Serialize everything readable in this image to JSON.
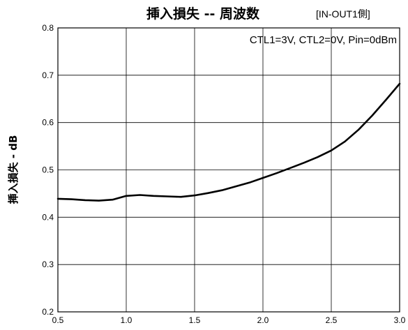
{
  "chart_data": {
    "type": "line",
    "title": "挿入損失 -- 周波数",
    "subtitle": "[IN-OUT1側]",
    "annotation": "CTL1=3V, CTL2=0V, Pin=0dBm",
    "xlabel": "",
    "ylabel": "挿入損失 - dB",
    "xlim": [
      0.5,
      3.0
    ],
    "ylim": [
      0.2,
      0.8
    ],
    "x_ticks": [
      "0.5",
      "1.0",
      "1.5",
      "2.0",
      "2.5",
      "3.0"
    ],
    "y_ticks": [
      "0.2",
      "0.3",
      "0.4",
      "0.5",
      "0.6",
      "0.7",
      "0.8"
    ],
    "grid": true,
    "series": [
      {
        "x": [
          0.5,
          0.6,
          0.7,
          0.8,
          0.9,
          1.0,
          1.1,
          1.2,
          1.3,
          1.4,
          1.5,
          1.6,
          1.7,
          1.8,
          1.9,
          2.0,
          2.1,
          2.2,
          2.3,
          2.4,
          2.5,
          2.6,
          2.7,
          2.8,
          2.9,
          3.0
        ],
        "y": [
          0.439,
          0.438,
          0.436,
          0.435,
          0.437,
          0.445,
          0.447,
          0.445,
          0.444,
          0.443,
          0.446,
          0.451,
          0.457,
          0.465,
          0.473,
          0.483,
          0.493,
          0.504,
          0.515,
          0.527,
          0.541,
          0.56,
          0.585,
          0.615,
          0.648,
          0.682
        ]
      }
    ]
  }
}
